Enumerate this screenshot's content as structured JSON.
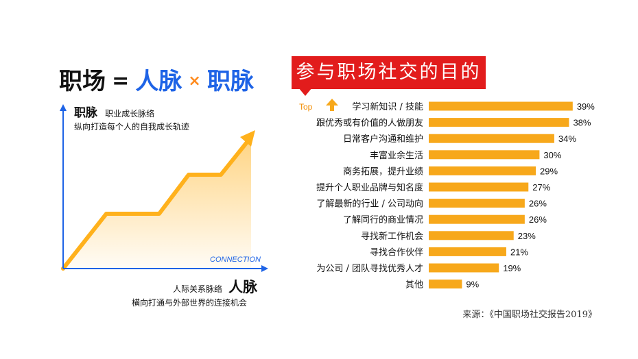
{
  "left": {
    "headline": {
      "word1": "职场",
      "op_eq": "=",
      "word2": "人脉",
      "op_times": "×",
      "word3": "职脉"
    },
    "vertical": {
      "big": "职脉",
      "small": "职业成长脉络",
      "desc": "纵向打造每个人的自我成长轨迹"
    },
    "horizontal": {
      "small": "人际关系脉络",
      "big": "人脉",
      "desc": "横向打通与外部世界的连接机会"
    },
    "connection_label": "CONNECTION",
    "colors": {
      "blue": "#1e63e6",
      "orange": "#ffb11c"
    }
  },
  "right": {
    "title": "参与职场社交的目的",
    "top_badge": "Top",
    "source": "来源：《中国职场社交报告2019》",
    "colors": {
      "bar": "#f7a81b",
      "banner": "#e21c1c",
      "arrow": "#f7a81b"
    }
  },
  "chart_data": {
    "type": "bar",
    "orientation": "horizontal",
    "title": "参与职场社交的目的",
    "categories": [
      "学习新知识 / 技能",
      "跟优秀或有价值的人做朋友",
      "日常客户沟通和维护",
      "丰富业余生活",
      "商务拓展，提升业绩",
      "提升个人职业品牌与知名度",
      "了解最新的行业 / 公司动向",
      "了解同行的商业情况",
      "寻找新工作机会",
      "寻找合作伙伴",
      "为公司 / 团队寻找优秀人才",
      "其他"
    ],
    "values": [
      39,
      38,
      34,
      30,
      29,
      27,
      26,
      26,
      23,
      21,
      19,
      9
    ],
    "value_labels": [
      "39%",
      "38%",
      "34%",
      "30%",
      "29%",
      "27%",
      "26%",
      "26%",
      "23%",
      "21%",
      "19%",
      "9%"
    ],
    "unit": "%"
  }
}
